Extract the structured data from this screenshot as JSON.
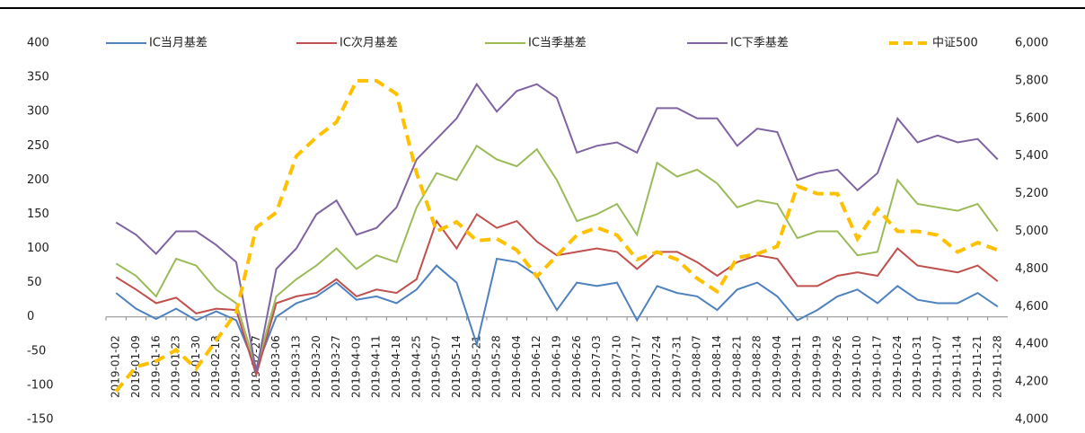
{
  "chart_data": {
    "type": "line",
    "categories": [
      "2019-01-02",
      "2019-01-09",
      "2019-01-16",
      "2019-01-23",
      "2019-01-30",
      "2019-02-13",
      "2019-02-20",
      "2019-02-27",
      "2019-03-06",
      "2019-03-13",
      "2019-03-20",
      "2019-03-27",
      "2019-04-03",
      "2019-04-11",
      "2019-04-18",
      "2019-04-25",
      "2019-05-07",
      "2019-05-14",
      "2019-05-21",
      "2019-05-28",
      "2019-06-04",
      "2019-06-12",
      "2019-06-19",
      "2019-06-26",
      "2019-07-03",
      "2019-07-10",
      "2019-07-17",
      "2019-07-24",
      "2019-07-31",
      "2019-08-07",
      "2019-08-14",
      "2019-08-21",
      "2019-08-28",
      "2019-09-04",
      "2019-09-11",
      "2019-09-19",
      "2019-09-26",
      "2019-10-10",
      "2019-10-17",
      "2019-10-24",
      "2019-10-31",
      "2019-11-07",
      "2019-11-14",
      "2019-11-21",
      "2019-11-28"
    ],
    "series": [
      {
        "name": "IC当月基差",
        "color": "#4f81bd",
        "values": [
          35,
          12,
          -3,
          12,
          -5,
          8,
          -5,
          -75,
          0,
          20,
          30,
          50,
          25,
          30,
          20,
          40,
          75,
          50,
          -40,
          85,
          80,
          60,
          10,
          50,
          45,
          50,
          -5,
          45,
          35,
          30,
          10,
          40,
          50,
          30,
          -5,
          10,
          30,
          40,
          20,
          45,
          25,
          20,
          20,
          35,
          15
        ]
      },
      {
        "name": "IC次月基差",
        "color": "#c0504d",
        "values": [
          58,
          40,
          20,
          28,
          5,
          12,
          10,
          -85,
          20,
          30,
          35,
          55,
          30,
          40,
          35,
          55,
          140,
          100,
          150,
          130,
          140,
          110,
          90,
          95,
          100,
          95,
          70,
          95,
          95,
          80,
          60,
          80,
          90,
          85,
          45,
          45,
          60,
          65,
          60,
          100,
          75,
          70,
          65,
          75,
          52
        ]
      },
      {
        "name": "IC当季基差",
        "color": "#9bbb59",
        "values": [
          78,
          60,
          30,
          85,
          75,
          40,
          20,
          -75,
          30,
          55,
          75,
          100,
          70,
          90,
          80,
          160,
          210,
          200,
          250,
          230,
          220,
          245,
          200,
          140,
          150,
          165,
          120,
          225,
          205,
          215,
          195,
          160,
          170,
          165,
          115,
          125,
          125,
          90,
          95,
          200,
          165,
          160,
          155,
          165,
          125
        ]
      },
      {
        "name": "IC下季基差",
        "color": "#8064a2",
        "values": [
          138,
          120,
          92,
          125,
          125,
          105,
          80,
          -80,
          70,
          100,
          150,
          170,
          120,
          130,
          160,
          230,
          260,
          290,
          340,
          300,
          330,
          340,
          320,
          240,
          250,
          255,
          240,
          305,
          305,
          290,
          290,
          250,
          275,
          270,
          200,
          210,
          215,
          185,
          210,
          290,
          255,
          265,
          255,
          260,
          230
        ]
      },
      {
        "name": "中证500",
        "color": "#ffc000",
        "axis": "y2",
        "dashed": true,
        "values": [
          4150,
          4280,
          4310,
          4370,
          4270,
          4420,
          4570,
          5020,
          5100,
          5400,
          5500,
          5580,
          5800,
          5800,
          5730,
          5310,
          5000,
          5050,
          4950,
          4960,
          4900,
          4760,
          4870,
          4980,
          5020,
          4980,
          4850,
          4890,
          4850,
          4750,
          4680,
          4860,
          4880,
          4920,
          5240,
          5200,
          5200,
          4960,
          5120,
          5000,
          5000,
          4980,
          4890,
          4940,
          4900
        ]
      }
    ],
    "ylim": [
      -150,
      400
    ],
    "yticks": [
      -150,
      -100,
      -50,
      0,
      50,
      100,
      150,
      200,
      250,
      300,
      350,
      400
    ],
    "y2lim": [
      4000,
      6000
    ],
    "y2ticks": [
      {
        "value": 4000,
        "label": "4,000"
      },
      {
        "value": 4200,
        "label": "4,200"
      },
      {
        "value": 4400,
        "label": "4,400"
      },
      {
        "value": 4600,
        "label": "4,600"
      },
      {
        "value": 4800,
        "label": "4,800"
      },
      {
        "value": 5000,
        "label": "5,000"
      },
      {
        "value": 5200,
        "label": "5,200"
      },
      {
        "value": 5400,
        "label": "5,400"
      },
      {
        "value": 5600,
        "label": "5,600"
      },
      {
        "value": 5800,
        "label": "5,800"
      },
      {
        "value": 6000,
        "label": "6,000"
      }
    ],
    "legend": "top",
    "grid": false
  }
}
